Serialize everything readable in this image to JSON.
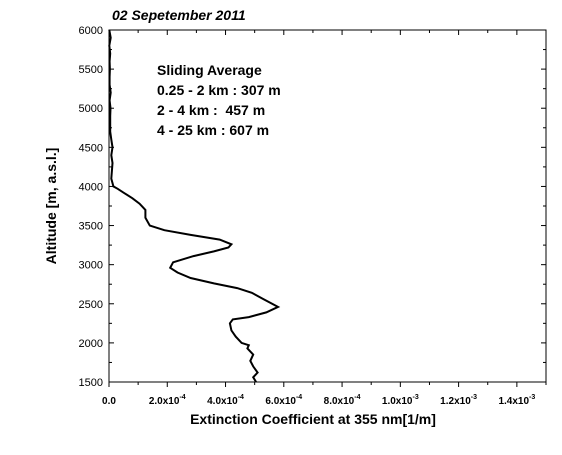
{
  "chart_data": {
    "type": "line",
    "title": "02 Sepetember 2011",
    "xlabel": "Extinction Coefficient at 355 nm[1/m]",
    "ylabel": "Altitude [m, a.s.l.]",
    "xlim": [
      0,
      0.0015
    ],
    "ylim": [
      1500,
      6000
    ],
    "x_ticks": [
      0,
      0.0002,
      0.0004,
      0.0006,
      0.0008,
      0.001,
      0.0012,
      0.0014
    ],
    "x_tick_labels": [
      {
        "base": "0.0",
        "exp": ""
      },
      {
        "base": "2.0x10",
        "exp": "-4"
      },
      {
        "base": "4.0x10",
        "exp": "-4"
      },
      {
        "base": "6.0x10",
        "exp": "-4"
      },
      {
        "base": "8.0x10",
        "exp": "-4"
      },
      {
        "base": "1.0x10",
        "exp": "-3"
      },
      {
        "base": "1.2x10",
        "exp": "-3"
      },
      {
        "base": "1.4x10",
        "exp": "-3"
      }
    ],
    "y_ticks": [
      1500,
      2000,
      2500,
      3000,
      3500,
      4000,
      4500,
      5000,
      5500,
      6000
    ],
    "y_tick_labels": [
      "1500",
      "2000",
      "2500",
      "3000",
      "3500",
      "4000",
      "4500",
      "5000",
      "5500",
      "6000"
    ],
    "annotation": {
      "heading": "Sliding Average",
      "lines": [
        "0.25 - 2 km : 307 m",
        "2 - 4 km :  457 m",
        "4 - 25 km : 607 m"
      ]
    },
    "grid": false,
    "line_color": "#000000",
    "series": [
      {
        "points": [
          [
            0.000505,
            1500
          ],
          [
            0.000495,
            1560
          ],
          [
            0.00051,
            1620
          ],
          [
            0.000495,
            1700
          ],
          [
            0.000485,
            1770
          ],
          [
            0.000495,
            1850
          ],
          [
            0.000475,
            1930
          ],
          [
            0.00048,
            1970
          ],
          [
            0.000455,
            2000
          ],
          [
            0.000435,
            2080
          ],
          [
            0.00042,
            2160
          ],
          [
            0.000415,
            2250
          ],
          [
            0.000425,
            2300
          ],
          [
            0.00048,
            2330
          ],
          [
            0.00054,
            2390
          ],
          [
            0.00058,
            2460
          ],
          [
            0.00056,
            2500
          ],
          [
            0.00053,
            2560
          ],
          [
            0.00049,
            2640
          ],
          [
            0.00044,
            2700
          ],
          [
            0.00036,
            2760
          ],
          [
            0.00028,
            2830
          ],
          [
            0.000235,
            2900
          ],
          [
            0.00021,
            2960
          ],
          [
            0.00022,
            3030
          ],
          [
            0.00029,
            3110
          ],
          [
            0.00036,
            3170
          ],
          [
            0.00041,
            3220
          ],
          [
            0.00042,
            3260
          ],
          [
            0.00038,
            3320
          ],
          [
            0.00028,
            3380
          ],
          [
            0.00019,
            3440
          ],
          [
            0.00014,
            3500
          ],
          [
            0.000125,
            3600
          ],
          [
            0.000125,
            3700
          ],
          [
            0.000105,
            3780
          ],
          [
            8e-05,
            3850
          ],
          [
            5e-05,
            3920
          ],
          [
            3e-05,
            3970
          ],
          [
            1.5e-05,
            4000
          ],
          [
            8e-06,
            4100
          ],
          [
            1e-05,
            4200
          ],
          [
            1.2e-05,
            4300
          ],
          [
            8e-06,
            4400
          ],
          [
            1.2e-05,
            4500
          ],
          [
            8e-06,
            4600
          ],
          [
            4e-06,
            4700
          ],
          [
            4e-06,
            4800
          ],
          [
            4e-06,
            4900
          ],
          [
            5e-06,
            5000
          ],
          [
            2e-06,
            5100
          ],
          [
            6e-06,
            5200
          ],
          [
            2e-06,
            5300
          ],
          [
            2e-06,
            5400
          ],
          [
            3e-06,
            5500
          ],
          [
            2e-06,
            5600
          ],
          [
            4e-06,
            5700
          ],
          [
            1e-06,
            5800
          ],
          [
            6e-06,
            5900
          ],
          [
            1e-06,
            6000
          ]
        ]
      }
    ]
  }
}
